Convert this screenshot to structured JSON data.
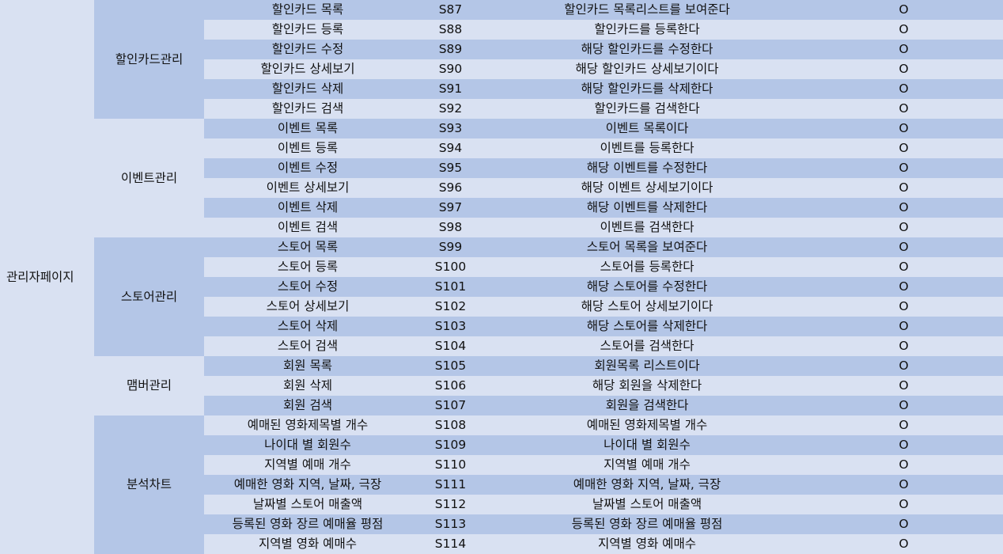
{
  "top_category": "관리자페이지",
  "groups": [
    {
      "name": "할인카드관리",
      "rows": [
        {
          "func": "할인카드 목록",
          "id": "S87",
          "desc": "할인카드 목록리스트를 보여준다",
          "mark": "O"
        },
        {
          "func": "할인카드 등록",
          "id": "S88",
          "desc": "할인카드를 등록한다",
          "mark": "O"
        },
        {
          "func": "할인카드 수정",
          "id": "S89",
          "desc": "해당 할인카드를 수정한다",
          "mark": "O"
        },
        {
          "func": "할인카드 상세보기",
          "id": "S90",
          "desc": "해당 할인카드 상세보기이다",
          "mark": "O"
        },
        {
          "func": "할인카드 삭제",
          "id": "S91",
          "desc": "해당 할인카드를 삭제한다",
          "mark": "O"
        },
        {
          "func": "할인카드 검색",
          "id": "S92",
          "desc": "할인카드를 검색한다",
          "mark": "O"
        }
      ]
    },
    {
      "name": "이벤트관리",
      "rows": [
        {
          "func": "이벤트 목록",
          "id": "S93",
          "desc": "이벤트 목록이다",
          "mark": "O"
        },
        {
          "func": "이벤트 등록",
          "id": "S94",
          "desc": "이벤트를 등록한다",
          "mark": "O"
        },
        {
          "func": "이벤트 수정",
          "id": "S95",
          "desc": "해당 이벤트를 수정한다",
          "mark": "O"
        },
        {
          "func": "이벤트 상세보기",
          "id": "S96",
          "desc": "해당 이벤트 상세보기이다",
          "mark": "O"
        },
        {
          "func": "이벤트 삭제",
          "id": "S97",
          "desc": "해당 이벤트를 삭제한다",
          "mark": "O"
        },
        {
          "func": "이벤트 검색",
          "id": "S98",
          "desc": "이벤트를 검색한다",
          "mark": "O"
        }
      ]
    },
    {
      "name": "스토어관리",
      "rows": [
        {
          "func": "스토어 목록",
          "id": "S99",
          "desc": "스토어 목록을 보여준다",
          "mark": "O"
        },
        {
          "func": "스토어 등록",
          "id": "S100",
          "desc": "스토어를 등록한다",
          "mark": "O"
        },
        {
          "func": "스토어 수정",
          "id": "S101",
          "desc": "해당 스토어를 수정한다",
          "mark": "O"
        },
        {
          "func": "스토어 상세보기",
          "id": "S102",
          "desc": "해당 스토어 상세보기이다",
          "mark": "O"
        },
        {
          "func": "스토어 삭제",
          "id": "S103",
          "desc": "해당 스토어를 삭제한다",
          "mark": "O"
        },
        {
          "func": "스토어 검색",
          "id": "S104",
          "desc": "스토어를 검색한다",
          "mark": "O"
        }
      ]
    },
    {
      "name": "맴버관리",
      "rows": [
        {
          "func": "회원 목록",
          "id": "S105",
          "desc": "회원목록 리스트이다",
          "mark": "O"
        },
        {
          "func": "회원 삭제",
          "id": "S106",
          "desc": "해당 회원을 삭제한다",
          "mark": "O"
        },
        {
          "func": "회원 검색",
          "id": "S107",
          "desc": "회원을 검색한다",
          "mark": "O"
        }
      ]
    },
    {
      "name": "분석차트",
      "rows": [
        {
          "func": "예매된 영화제목별 개수",
          "id": "S108",
          "desc": "예매된 영화제목별 개수",
          "mark": "O"
        },
        {
          "func": "나이대 별 회원수",
          "id": "S109",
          "desc": "나이대 별 회원수",
          "mark": "O"
        },
        {
          "func": "지역별 예매 개수",
          "id": "S110",
          "desc": "지역별 예매 개수",
          "mark": "O"
        },
        {
          "func": "예매한 영화 지역, 날짜, 극장",
          "id": "S111",
          "desc": "예매한 영화 지역, 날짜, 극장",
          "mark": "O"
        },
        {
          "func": "날짜별 스토어 매출액",
          "id": "S112",
          "desc": "날짜별 스토어 매출액",
          "mark": "O"
        },
        {
          "func": "등록된 영화 장르 예매율 평점",
          "id": "S113",
          "desc": "등록된 영화 장르 예매율 평점",
          "mark": "O"
        },
        {
          "func": "지역별 영화 예매수",
          "id": "S114",
          "desc": "지역별 영화 예매수",
          "mark": "O"
        }
      ]
    }
  ]
}
